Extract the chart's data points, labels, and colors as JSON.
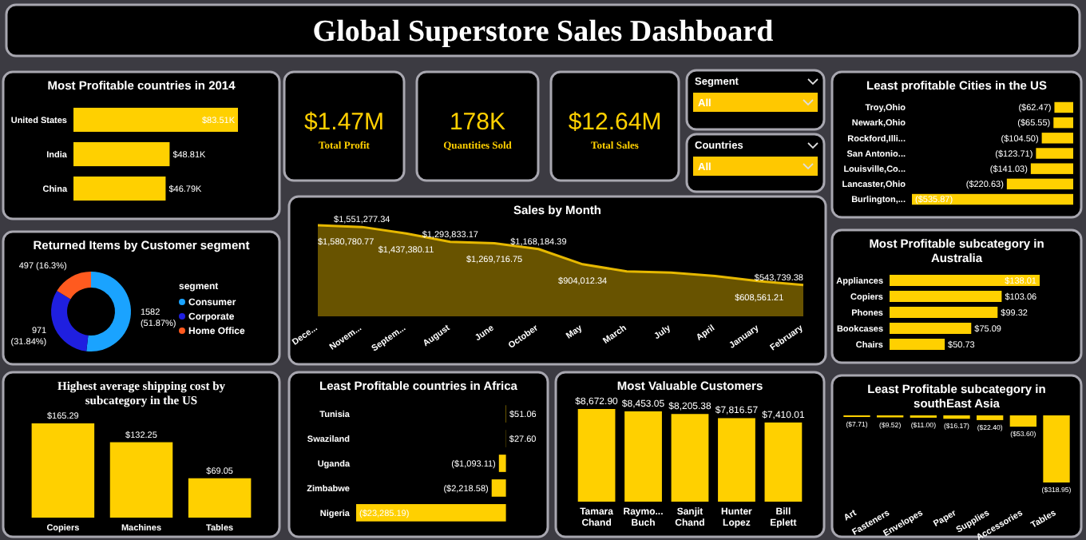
{
  "chart_data": [
    {
      "type": "other",
      "title": "Global Superstore Sales Dashboard"
    },
    {
      "type": "bar",
      "orientation": "horizontal",
      "title": "Most Profitable countries in 2014",
      "categories": [
        "United States",
        "India",
        "China"
      ],
      "values": [
        83.51,
        48.81,
        46.79
      ],
      "color": "#ffd000",
      "value_labels": [
        "$83.51K",
        "$48.81K",
        "$46.79K"
      ]
    },
    {
      "type": "other",
      "title": "Total Profit",
      "annotations": [
        "$1.47M"
      ]
    },
    {
      "type": "other",
      "title": "Quantities Sold",
      "annotations": [
        "178K"
      ]
    },
    {
      "type": "other",
      "title": "Total Sales",
      "annotations": [
        "$12.64M"
      ]
    },
    {
      "type": "other",
      "title": "Segment",
      "annotations": [
        "All"
      ]
    },
    {
      "type": "other",
      "title": "Countries",
      "annotations": [
        "All"
      ]
    },
    {
      "type": "bar",
      "orientation": "horizontal",
      "title": "Least profitable Cities in the US",
      "categories": [
        "Troy,Ohio",
        "Newark,Ohio",
        "Rockford,Illi...",
        "San Antonio...",
        "Louisville,Co...",
        "Lancaster,Ohio",
        "Burlington,..."
      ],
      "values": [
        -62.47,
        -65.55,
        -104.5,
        -123.71,
        -141.03,
        -220.63,
        -535.87
      ],
      "color": "#ffd000",
      "value_labels": [
        "($62.47)",
        "($65.55)",
        "($104.50)",
        "($123.71)",
        "($141.03)",
        "($220.63)",
        "($535.87)"
      ]
    },
    {
      "type": "donut",
      "title": "Returned Items by Customer segment",
      "categories": [
        "Consumer",
        "Corporate",
        "Home Office"
      ],
      "values": [
        1582,
        971,
        497
      ],
      "colors": [
        "#1aa3ff",
        "#1f1fe0",
        "#ff5a1f"
      ],
      "value_labels": [
        "1582 (51.87%)",
        "971 (31.84%)",
        "497 (16.3%)"
      ],
      "legend_title": "segment",
      "legend": "right"
    },
    {
      "type": "area",
      "title": "Sales by Month",
      "categories": [
        "Dece...",
        "Novem...",
        "Septem...",
        "August",
        "June",
        "October",
        "May",
        "March",
        "July",
        "April",
        "January",
        "February"
      ],
      "values": [
        1580780.77,
        1551277.34,
        1437380.11,
        1293833.17,
        1269716.75,
        1168184.39,
        904012.34,
        780000,
        760000,
        700000,
        608561.21,
        543739.38
      ],
      "color": "#e6b800",
      "value_labels": [
        "$1,580,780.77",
        "$1,551,277.34",
        "$1,437,380.11",
        "$1,293,833.17",
        "$1,269,716.75",
        "$1,168,184.39",
        "$904,012.34",
        null,
        null,
        null,
        "$608,561.21",
        "$543,739.38"
      ]
    },
    {
      "type": "bar",
      "orientation": "horizontal",
      "title": "Most Profitable subcategory in Australia",
      "categories": [
        "Appliances",
        "Copiers",
        "Phones",
        "Bookcases",
        "Chairs"
      ],
      "values": [
        138.01,
        103.06,
        99.32,
        75.09,
        50.73
      ],
      "color": "#ffd000",
      "value_labels": [
        "$138.01",
        "$103.06",
        "$99.32",
        "$75.09",
        "$50.73"
      ]
    },
    {
      "type": "bar",
      "title": "Highest average shipping cost by subcategory in the US",
      "categories": [
        "Copiers",
        "Machines",
        "Tables"
      ],
      "values": [
        165.29,
        132.25,
        69.05
      ],
      "color": "#ffd000",
      "value_labels": [
        "$165.29",
        "$132.25",
        "$69.05"
      ]
    },
    {
      "type": "bar",
      "orientation": "horizontal",
      "title": "Least Profitable countries in Africa",
      "categories": [
        "Tunisia",
        "Swaziland",
        "Uganda",
        "Zimbabwe",
        "Nigeria"
      ],
      "values": [
        51.06,
        27.6,
        -1093.11,
        -2218.58,
        -23285.19
      ],
      "color": "#ffd000",
      "value_labels": [
        "$51.06",
        "$27.60",
        "($1,093.11)",
        "($2,218.58)",
        "($23,285.19)"
      ]
    },
    {
      "type": "bar",
      "title": "Most Valuable Customers",
      "categories": [
        "Tamara Chand",
        "Raymo... Buch",
        "Sanjit Chand",
        "Hunter Lopez",
        "Bill Eplett"
      ],
      "values": [
        8672.9,
        8453.05,
        8205.38,
        7816.57,
        7410.01
      ],
      "color": "#ffd000",
      "value_labels": [
        "$8,672.90",
        "$8,453.05",
        "$8,205.38",
        "$7,816.57",
        "$7,410.01"
      ]
    },
    {
      "type": "bar",
      "title": "Least Profitable subcategory in southEast Asia",
      "categories": [
        "Art",
        "Fasteners",
        "Envelopes",
        "Paper",
        "Supplies",
        "Accessories",
        "Tables"
      ],
      "values": [
        -7.71,
        -9.52,
        -11.0,
        -16.17,
        -22.4,
        -53.6,
        -318.95
      ],
      "color": "#ffd000",
      "value_labels": [
        "($7.71)",
        "($9.52)",
        "($11.00)",
        "($16.17)",
        "($22.40)",
        "($53.60)",
        "($318.95)"
      ]
    }
  ]
}
